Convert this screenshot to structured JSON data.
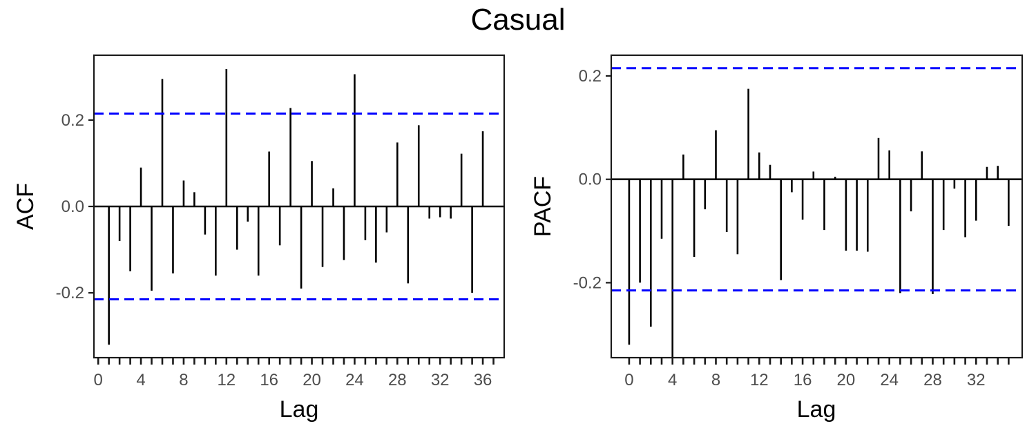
{
  "figure": {
    "title": "Casual"
  },
  "chart_data": [
    {
      "type": "bar",
      "subtype": "acf-stem",
      "ylabel": "ACF",
      "xlabel": "Lag",
      "xlim": [
        -0.4,
        38.0
      ],
      "ylim": [
        -0.35,
        0.35
      ],
      "y_ticks": [
        -0.2,
        0.0,
        0.2
      ],
      "y_tick_labels": [
        "-0.2",
        "0.0",
        "0.2"
      ],
      "x_ticks": [
        0,
        4,
        8,
        12,
        16,
        20,
        24,
        28,
        32,
        36
      ],
      "x_tick_labels": [
        "0",
        "4",
        "8",
        "12",
        "16",
        "20",
        "24",
        "28",
        "32",
        "36"
      ],
      "x_minor_ticks": [
        0,
        1,
        2,
        3,
        4,
        5,
        6,
        7,
        8,
        9,
        10,
        11,
        12,
        13,
        14,
        15,
        16,
        17,
        18,
        19,
        20,
        21,
        22,
        23,
        24,
        25,
        26,
        27,
        28,
        29,
        30,
        31,
        32,
        33,
        34,
        35,
        36,
        37
      ],
      "confidence_band": [
        0.215,
        -0.215
      ],
      "confidence_color": "#0000ff",
      "stem_color": "#000000",
      "grid": false,
      "lags": [
        1,
        2,
        3,
        4,
        5,
        6,
        7,
        8,
        9,
        10,
        11,
        12,
        13,
        14,
        15,
        16,
        17,
        18,
        19,
        20,
        21,
        22,
        23,
        24,
        25,
        26,
        27,
        28,
        29,
        30,
        31,
        32,
        33,
        34,
        35,
        36
      ],
      "values": [
        -0.32,
        -0.08,
        -0.15,
        0.09,
        -0.195,
        0.295,
        -0.155,
        0.06,
        0.033,
        -0.065,
        -0.16,
        0.318,
        -0.1,
        -0.035,
        -0.16,
        0.127,
        -0.09,
        0.228,
        -0.19,
        0.105,
        -0.14,
        0.042,
        -0.124,
        0.306,
        -0.078,
        -0.13,
        -0.06,
        0.148,
        -0.178,
        0.188,
        -0.028,
        -0.025,
        -0.028,
        0.122,
        -0.2,
        0.174
      ]
    },
    {
      "type": "bar",
      "subtype": "pacf-stem",
      "ylabel": "PACF",
      "xlabel": "Lag",
      "xlim": [
        -1.65,
        36.25
      ],
      "ylim": [
        -0.345,
        0.24
      ],
      "y_ticks": [
        -0.2,
        0.0,
        0.2
      ],
      "y_tick_labels": [
        "-0.2",
        "0.0",
        "0.2"
      ],
      "x_ticks": [
        0,
        4,
        8,
        12,
        16,
        20,
        24,
        28,
        32
      ],
      "x_tick_labels": [
        "0",
        "4",
        "8",
        "12",
        "16",
        "20",
        "24",
        "28",
        "32"
      ],
      "x_minor_ticks": [
        0,
        1,
        2,
        3,
        4,
        5,
        6,
        7,
        8,
        9,
        10,
        11,
        12,
        13,
        14,
        15,
        16,
        17,
        18,
        19,
        20,
        21,
        22,
        23,
        24,
        25,
        26,
        27,
        28,
        29,
        30,
        31,
        32,
        33,
        34,
        35
      ],
      "confidence_band": [
        0.215,
        -0.215
      ],
      "confidence_color": "#0000ff",
      "stem_color": "#000000",
      "grid": false,
      "lags": [
        0,
        1,
        2,
        3,
        4,
        5,
        6,
        7,
        8,
        9,
        10,
        11,
        12,
        13,
        14,
        15,
        16,
        17,
        18,
        19,
        20,
        21,
        22,
        23,
        24,
        25,
        26,
        27,
        28,
        29,
        30,
        31,
        32,
        33,
        34,
        35
      ],
      "values": [
        -0.32,
        -0.2,
        -0.285,
        -0.115,
        -0.345,
        0.048,
        -0.15,
        -0.058,
        0.095,
        -0.102,
        -0.145,
        0.175,
        0.052,
        0.028,
        -0.195,
        -0.025,
        -0.078,
        0.015,
        -0.098,
        0.005,
        -0.138,
        -0.138,
        -0.14,
        0.08,
        0.056,
        -0.22,
        -0.062,
        0.054,
        -0.222,
        -0.098,
        -0.018,
        -0.112,
        -0.08,
        0.024,
        0.026,
        -0.09
      ]
    }
  ]
}
